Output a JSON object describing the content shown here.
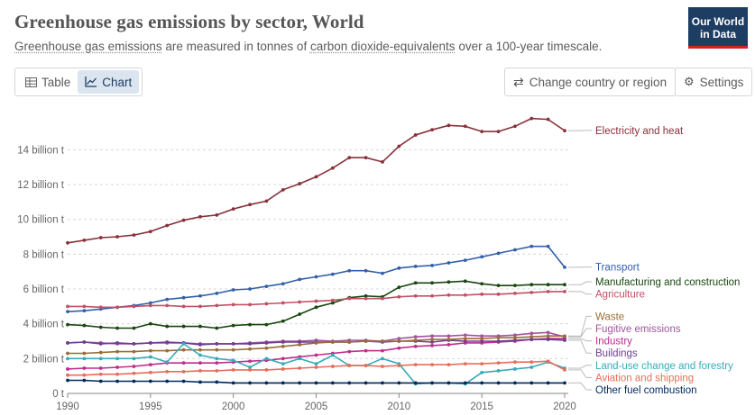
{
  "header": {
    "title": "Greenhouse gas emissions by sector, World",
    "subtitle_parts": [
      "Greenhouse gas emissions",
      " are measured in tonnes of ",
      "carbon dioxide-equivalents",
      " over a 100-year timescale."
    ],
    "logo_line1": "Our World",
    "logo_line2": "in Data"
  },
  "controls": {
    "tab_table": "Table",
    "tab_chart": "Chart",
    "change_country": "Change country or region",
    "settings": "Settings"
  },
  "chart_data": {
    "type": "line",
    "title": "Greenhouse gas emissions by sector, World",
    "x": [
      1990,
      1991,
      1992,
      1993,
      1994,
      1995,
      1996,
      1997,
      1998,
      1999,
      2000,
      2001,
      2002,
      2003,
      2004,
      2005,
      2006,
      2007,
      2008,
      2009,
      2010,
      2011,
      2012,
      2013,
      2014,
      2015,
      2016,
      2017,
      2018,
      2019,
      2020
    ],
    "ylim": [
      0,
      16.5
    ],
    "yticks": [
      0,
      2,
      4,
      6,
      8,
      10,
      12,
      14
    ],
    "ytick_labels": [
      "0 t",
      "2 billion t",
      "4 billion t",
      "6 billion t",
      "8 billion t",
      "10 billion t",
      "12 billion t",
      "14 billion t"
    ],
    "xticks": [
      1990,
      1995,
      2000,
      2005,
      2010,
      2015,
      2020
    ],
    "grid": "horizontal-dotted",
    "legend": "line-end labels",
    "series": [
      {
        "name": "Electricity and heat",
        "color": "#883039",
        "values": [
          8.65,
          8.8,
          8.95,
          9.0,
          9.1,
          9.3,
          9.65,
          9.95,
          10.15,
          10.25,
          10.6,
          10.85,
          11.05,
          11.7,
          12.05,
          12.45,
          12.95,
          13.55,
          13.55,
          13.3,
          14.2,
          14.85,
          15.15,
          15.4,
          15.35,
          15.05,
          15.05,
          15.35,
          15.8,
          15.75,
          15.1
        ]
      },
      {
        "name": "Transport",
        "color": "#3360a9",
        "values": [
          4.7,
          4.75,
          4.85,
          4.95,
          5.05,
          5.2,
          5.4,
          5.5,
          5.6,
          5.75,
          5.95,
          6.0,
          6.15,
          6.3,
          6.55,
          6.7,
          6.85,
          7.05,
          7.05,
          6.9,
          7.2,
          7.3,
          7.35,
          7.5,
          7.65,
          7.85,
          8.05,
          8.25,
          8.45,
          8.45,
          7.25
        ]
      },
      {
        "name": "Manufacturing and construction",
        "color": "#18470f",
        "values": [
          3.95,
          3.9,
          3.8,
          3.75,
          3.75,
          4.0,
          3.85,
          3.85,
          3.85,
          3.75,
          3.9,
          3.95,
          3.95,
          4.15,
          4.55,
          4.95,
          5.2,
          5.5,
          5.6,
          5.55,
          6.1,
          6.35,
          6.35,
          6.4,
          6.45,
          6.3,
          6.2,
          6.2,
          6.25,
          6.25,
          6.25
        ]
      },
      {
        "name": "Agriculture",
        "color": "#c15065",
        "values": [
          5.0,
          5.0,
          4.95,
          4.95,
          5.0,
          5.05,
          5.05,
          5.0,
          5.0,
          5.05,
          5.1,
          5.1,
          5.15,
          5.2,
          5.25,
          5.3,
          5.35,
          5.45,
          5.45,
          5.45,
          5.55,
          5.6,
          5.6,
          5.65,
          5.65,
          5.7,
          5.7,
          5.75,
          5.8,
          5.85,
          5.85
        ]
      },
      {
        "name": "Fugitive emissions",
        "color": "#a2559c",
        "values": [
          2.9,
          2.95,
          2.9,
          2.85,
          2.85,
          2.9,
          2.9,
          2.9,
          2.85,
          2.85,
          2.85,
          2.9,
          2.95,
          3.0,
          3.0,
          3.05,
          3.0,
          3.05,
          3.05,
          3.0,
          3.15,
          3.25,
          3.3,
          3.3,
          3.35,
          3.3,
          3.3,
          3.35,
          3.45,
          3.5,
          3.25
        ]
      },
      {
        "name": "Industry",
        "color": "#be2d8c",
        "values": [
          1.4,
          1.45,
          1.45,
          1.5,
          1.55,
          1.65,
          1.75,
          1.75,
          1.75,
          1.75,
          1.8,
          1.85,
          1.9,
          2.0,
          2.1,
          2.2,
          2.3,
          2.4,
          2.45,
          2.45,
          2.6,
          2.7,
          2.75,
          2.8,
          2.9,
          2.9,
          2.95,
          3.0,
          3.1,
          3.15,
          3.15
        ]
      },
      {
        "name": "Buildings",
        "color": "#6d3e91",
        "values": [
          2.9,
          2.95,
          2.85,
          2.9,
          2.85,
          2.9,
          2.95,
          2.9,
          2.8,
          2.85,
          2.85,
          2.85,
          2.9,
          2.95,
          2.95,
          2.95,
          2.95,
          2.95,
          3.0,
          2.95,
          3.0,
          3.0,
          2.95,
          3.05,
          3.0,
          3.0,
          3.0,
          3.05,
          3.1,
          3.1,
          3.05
        ]
      },
      {
        "name": "Waste",
        "color": "#996d39",
        "values": [
          2.3,
          2.3,
          2.35,
          2.4,
          2.4,
          2.45,
          2.45,
          2.5,
          2.5,
          2.5,
          2.5,
          2.55,
          2.6,
          2.7,
          2.8,
          2.9,
          2.95,
          2.95,
          3.0,
          3.0,
          3.0,
          3.05,
          3.1,
          3.1,
          3.15,
          3.15,
          3.2,
          3.2,
          3.25,
          3.3,
          3.3
        ]
      },
      {
        "name": "Land-use change and forestry",
        "color": "#38aaba",
        "values": [
          2.0,
          2.0,
          2.0,
          2.0,
          2.0,
          2.1,
          1.8,
          2.85,
          2.2,
          2.0,
          1.9,
          1.5,
          2.0,
          1.7,
          2.0,
          1.7,
          2.2,
          1.6,
          1.6,
          2.0,
          1.7,
          0.55,
          0.6,
          0.6,
          0.55,
          1.2,
          1.3,
          1.4,
          1.5,
          1.8,
          1.45
        ]
      },
      {
        "name": "Aviation and shipping",
        "color": "#e56e5a",
        "values": [
          1.05,
          1.05,
          1.1,
          1.1,
          1.15,
          1.2,
          1.25,
          1.25,
          1.3,
          1.3,
          1.35,
          1.35,
          1.35,
          1.4,
          1.45,
          1.5,
          1.55,
          1.6,
          1.6,
          1.55,
          1.6,
          1.65,
          1.65,
          1.65,
          1.7,
          1.7,
          1.75,
          1.8,
          1.8,
          1.85,
          1.35
        ]
      },
      {
        "name": "Other fuel combustion",
        "color": "#00295b",
        "values": [
          0.75,
          0.75,
          0.7,
          0.7,
          0.7,
          0.7,
          0.7,
          0.7,
          0.65,
          0.65,
          0.6,
          0.6,
          0.6,
          0.6,
          0.6,
          0.6,
          0.6,
          0.6,
          0.6,
          0.6,
          0.6,
          0.6,
          0.6,
          0.6,
          0.6,
          0.6,
          0.6,
          0.6,
          0.6,
          0.6,
          0.6
        ]
      }
    ]
  }
}
